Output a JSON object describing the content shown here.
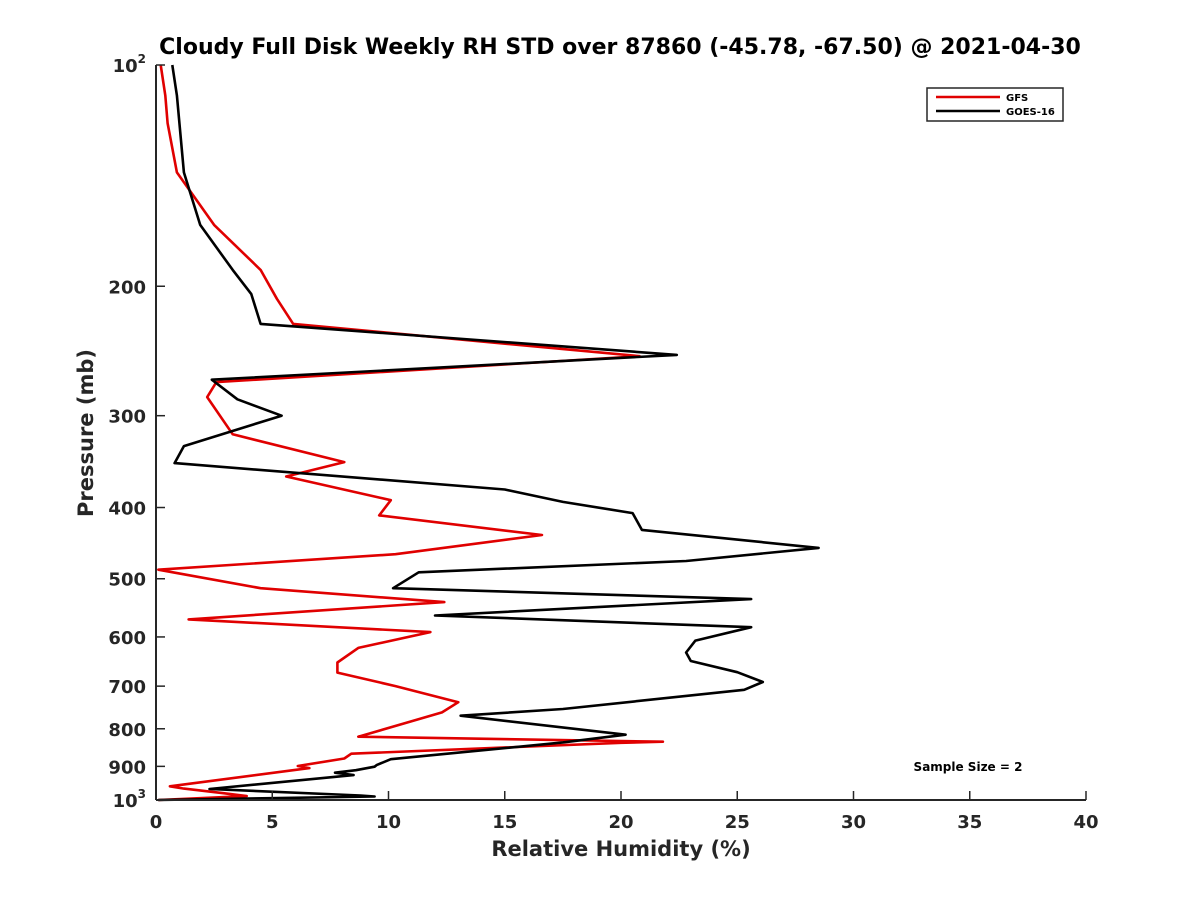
{
  "chart_data": {
    "type": "line",
    "title": "Cloudy Full Disk Weekly RH STD over 87860 (-45.78, -67.50) @ 2021-04-30",
    "xlabel": "Relative Humidity (%)",
    "ylabel": "Pressure (mb)",
    "xlim": [
      0,
      40
    ],
    "ylim": [
      100,
      1000
    ],
    "yscale": "log",
    "y_reversed": true,
    "grid": false,
    "legend_position": "top-right",
    "x_ticks": [
      "0",
      "5",
      "10",
      "15",
      "20",
      "25",
      "30",
      "35",
      "40"
    ],
    "y_ticks": [
      {
        "value": 100,
        "base": "10",
        "exp": "2"
      },
      {
        "value": 200,
        "label": "200"
      },
      {
        "value": 300,
        "label": "300"
      },
      {
        "value": 400,
        "label": "400"
      },
      {
        "value": 500,
        "label": "500"
      },
      {
        "value": 600,
        "label": "600"
      },
      {
        "value": 700,
        "label": "700"
      },
      {
        "value": 800,
        "label": "800"
      },
      {
        "value": 900,
        "label": "900"
      },
      {
        "value": 1000,
        "base": "10",
        "exp": "3"
      }
    ],
    "annotation": "Sample Size = 2",
    "series": [
      {
        "name": "GFS",
        "color": "#e00000",
        "points": [
          [
            0.2,
            100
          ],
          [
            0.4,
            110
          ],
          [
            0.5,
            120
          ],
          [
            0.9,
            140
          ],
          [
            2.5,
            165
          ],
          [
            4.5,
            190
          ],
          [
            5.2,
            208
          ],
          [
            5.9,
            225
          ],
          [
            20.8,
            249
          ],
          [
            2.6,
            270
          ],
          [
            2.2,
            283
          ],
          [
            3.3,
            318
          ],
          [
            8.1,
            347
          ],
          [
            5.6,
            363
          ],
          [
            10.1,
            391
          ],
          [
            9.6,
            410
          ],
          [
            16.6,
            436
          ],
          [
            10.3,
            463
          ],
          [
            0.1,
            486
          ],
          [
            4.5,
            515
          ],
          [
            12.4,
            538
          ],
          [
            1.4,
            568
          ],
          [
            11.8,
            591
          ],
          [
            8.7,
            621
          ],
          [
            7.8,
            650
          ],
          [
            7.8,
            671
          ],
          [
            10.3,
            700
          ],
          [
            13.0,
            736
          ],
          [
            12.3,
            760
          ],
          [
            10.9,
            783
          ],
          [
            8.7,
            820
          ],
          [
            21.8,
            833
          ],
          [
            20.0,
            836
          ],
          [
            8.4,
            865
          ],
          [
            8.1,
            878
          ],
          [
            6.1,
            899
          ],
          [
            6.6,
            905
          ],
          [
            0.6,
            958
          ],
          [
            1.2,
            965
          ],
          [
            2.9,
            979
          ],
          [
            3.9,
            988
          ],
          [
            0.1,
            1000
          ]
        ]
      },
      {
        "name": "GOES-16",
        "color": "#000000",
        "points": [
          [
            0.7,
            100
          ],
          [
            0.9,
            110
          ],
          [
            1.2,
            140
          ],
          [
            1.9,
            165
          ],
          [
            3.3,
            190
          ],
          [
            4.1,
            205
          ],
          [
            4.5,
            225
          ],
          [
            22.4,
            248
          ],
          [
            2.4,
            268
          ],
          [
            3.5,
            285
          ],
          [
            5.4,
            300
          ],
          [
            1.2,
            330
          ],
          [
            0.8,
            348
          ],
          [
            15.0,
            378
          ],
          [
            17.5,
            393
          ],
          [
            20.5,
            407
          ],
          [
            20.9,
            429
          ],
          [
            28.5,
            454
          ],
          [
            22.8,
            473
          ],
          [
            11.3,
            490
          ],
          [
            10.2,
            515
          ],
          [
            25.6,
            533
          ],
          [
            12.0,
            561
          ],
          [
            25.6,
            582
          ],
          [
            23.2,
            607
          ],
          [
            22.8,
            630
          ],
          [
            23.0,
            647
          ],
          [
            25.0,
            670
          ],
          [
            26.1,
            691
          ],
          [
            25.3,
            708
          ],
          [
            17.5,
            752
          ],
          [
            13.1,
            768
          ],
          [
            20.2,
            815
          ],
          [
            17.5,
            835
          ],
          [
            10.1,
            880
          ],
          [
            9.5,
            896
          ],
          [
            9.4,
            901
          ],
          [
            8.6,
            911
          ],
          [
            7.7,
            918
          ],
          [
            8.5,
            925
          ],
          [
            2.3,
            966
          ],
          [
            8.8,
            986
          ],
          [
            9.4,
            989
          ],
          [
            0.1,
            1000
          ]
        ]
      }
    ]
  }
}
